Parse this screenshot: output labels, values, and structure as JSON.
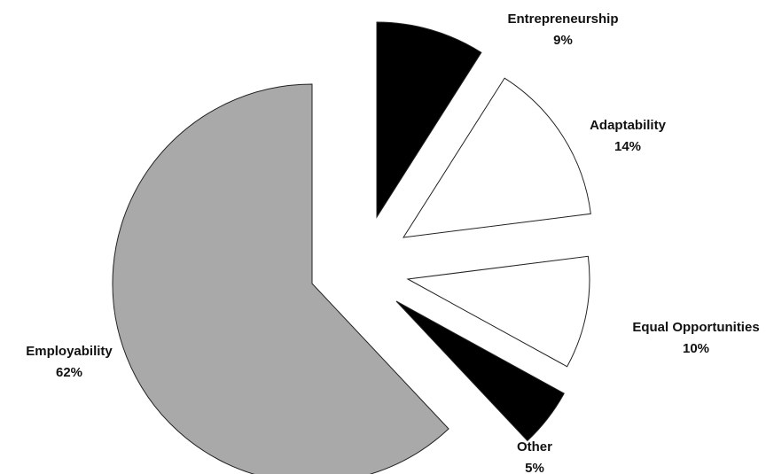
{
  "chart_data": {
    "type": "pie",
    "categories": [
      "Entrepreneurship",
      "Adaptability",
      "Equal Opportunities",
      "Other",
      "Employability"
    ],
    "values": [
      9,
      14,
      10,
      5,
      62
    ],
    "value_labels": [
      "9%",
      "14%",
      "10%",
      "5%",
      "62%"
    ],
    "colors": [
      "#000000",
      "#ffffff",
      "#ffffff",
      "#000000",
      "#a9a9a9"
    ]
  }
}
